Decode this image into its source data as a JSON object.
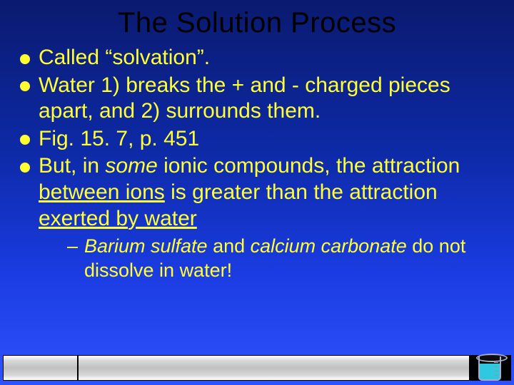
{
  "title": "The Solution Process",
  "bullets": {
    "b1_pre": "Called ",
    "b1_q1": "“",
    "b1_term": "solvation",
    "b1_q2": "”",
    "b1_post": ".",
    "b2": "Water 1) breaks the + and - charged pieces apart, and 2) surrounds them.",
    "b3": "Fig. 15. 7, p. 451",
    "b4_pre": "But, in ",
    "b4_some": "some",
    "b4_mid1": " ionic compounds, the attraction ",
    "b4_between": "between ions",
    "b4_mid2": " is greater than the attraction ",
    "b4_exerted": "exerted by water"
  },
  "sub": {
    "s1_b": "Barium sulfate",
    "s1_mid": " and ",
    "s1_c": "calcium carbonate",
    "s1_end": " do not dissolve in water!"
  },
  "colors": {
    "title": "#000000",
    "text": "#ffff33",
    "bg_top": "#0a1a6e",
    "bg_bottom": "#2e52ff",
    "water": "#2ec9e0"
  }
}
